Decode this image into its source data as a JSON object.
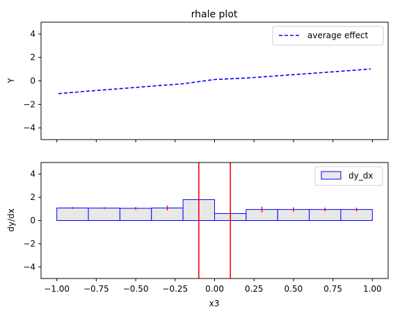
{
  "chart_data": [
    {
      "type": "line",
      "title": "rhale plot",
      "xlabel": "",
      "ylabel": "Y",
      "xlim": [
        -1.1,
        1.1
      ],
      "ylim": [
        -5,
        5
      ],
      "yticks": [
        -4,
        -2,
        0,
        2,
        4
      ],
      "xticks": [
        -1.0,
        -0.75,
        -0.5,
        -0.25,
        0.0,
        0.25,
        0.5,
        0.75,
        1.0
      ],
      "show_xtick_labels": false,
      "legend": "upper right",
      "grid": false,
      "series": [
        {
          "name": "average effect",
          "color": "#0000ff",
          "linestyle": "dashed",
          "x": [
            -0.99,
            -0.8,
            -0.6,
            -0.4,
            -0.2,
            0.0,
            0.2,
            0.4,
            0.6,
            0.8,
            0.99
          ],
          "y": [
            -1.08,
            -0.87,
            -0.66,
            -0.45,
            -0.24,
            0.12,
            0.24,
            0.44,
            0.63,
            0.82,
            1.02
          ]
        }
      ]
    },
    {
      "type": "bar",
      "title": "",
      "xlabel": "x3",
      "ylabel": "dy/dx",
      "xlim": [
        -1.1,
        1.1
      ],
      "ylim": [
        -5,
        5
      ],
      "yticks": [
        -4,
        -2,
        0,
        2,
        4
      ],
      "xticks": [
        -1.0,
        -0.75,
        -0.5,
        -0.25,
        0.0,
        0.25,
        0.5,
        0.75,
        1.0
      ],
      "xtick_labels": [
        "−1.00",
        "−0.75",
        "−0.50",
        "−0.25",
        "0.00",
        "0.25",
        "0.50",
        "0.75",
        "1.00"
      ],
      "yticks_labels": [
        "−4",
        "−2",
        "0",
        "2",
        "4"
      ],
      "legend": "upper right",
      "grid": false,
      "series": [
        {
          "name": "dy_dx",
          "fill": "#e8e8e8",
          "edge": "#0000ff",
          "bin_edges": [
            -1.0,
            -0.8,
            -0.6,
            -0.4,
            -0.2,
            0.0,
            0.2,
            0.4,
            0.6,
            0.8,
            1.0
          ],
          "values": [
            1.08,
            1.07,
            1.05,
            1.08,
            1.8,
            0.6,
            0.95,
            0.95,
            0.95,
            0.95
          ],
          "errors": [
            0.02,
            0.02,
            0.05,
            0.15,
            0.02,
            0.02,
            0.18,
            0.12,
            0.1,
            0.1
          ]
        }
      ],
      "vlines": {
        "x": [
          -0.1,
          0.1
        ],
        "color": "#ff0000"
      },
      "error_color": "#ff0000"
    }
  ]
}
